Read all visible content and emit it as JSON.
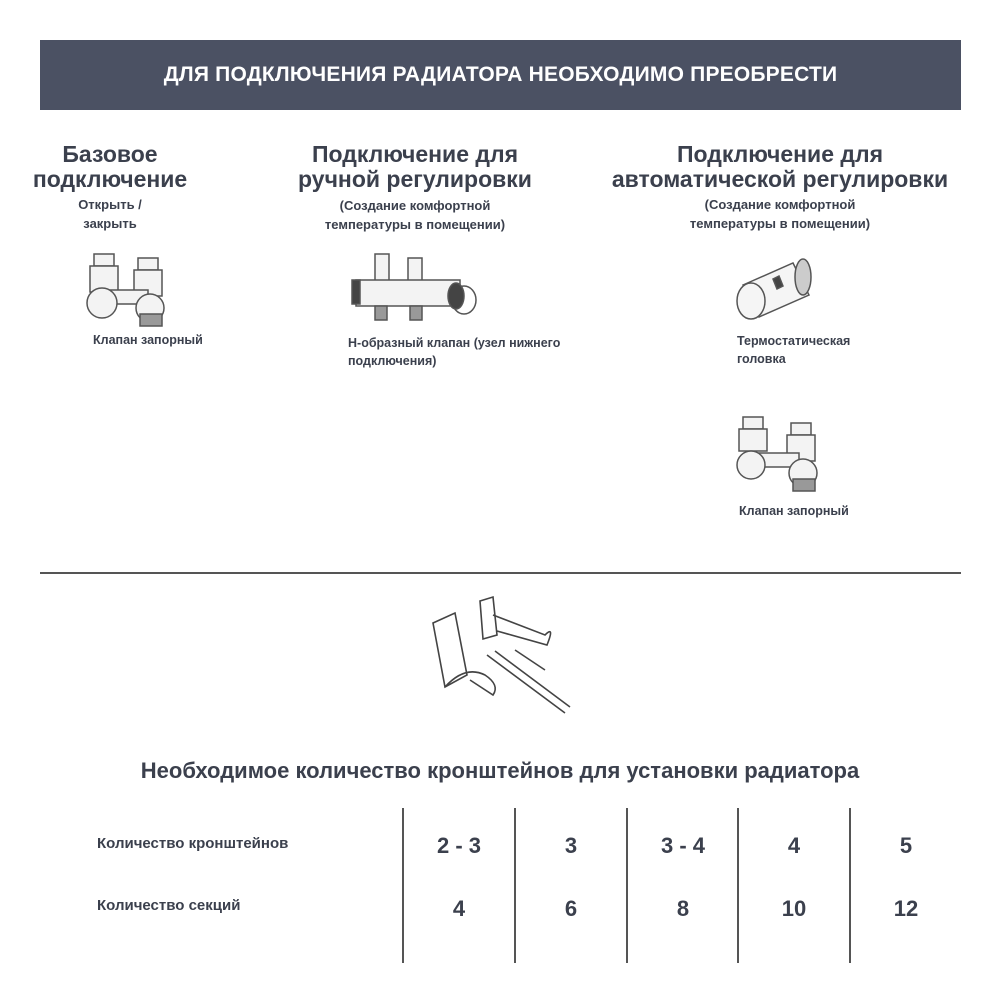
{
  "banner": {
    "title": "ДЛЯ ПОДКЛЮЧЕНИЯ РАДИАТОРА НЕОБХОДИМО ПРЕОБРЕСТИ"
  },
  "options": [
    {
      "title": "Базовое подключение",
      "subtitle": "Открыть / закрыть",
      "items": [
        {
          "caption": "Клапан запорный",
          "icon": "shutoff-valve-icon"
        }
      ]
    },
    {
      "title": "Подключение для ручной регулировки",
      "subtitle": "(Создание комфортной температуры в помещении)",
      "items": [
        {
          "caption": "Н-образный клапан (узел нижнего подключения)",
          "icon": "h-valve-icon"
        }
      ]
    },
    {
      "title": "Подключение для автоматической регулировки",
      "subtitle": "(Создание комфортной температуры в помещении)",
      "items": [
        {
          "caption": "Термостатическая головка",
          "icon": "thermostatic-head-icon"
        },
        {
          "caption": "Клапан запорный",
          "icon": "shutoff-valve-icon"
        }
      ]
    }
  ],
  "brackets": {
    "icon": "bracket-icon",
    "title": "Необходимое количество кронштейнов для установки радиатора",
    "rows": [
      {
        "label": "Количество кронштейнов",
        "values": [
          "2 - 3",
          "3",
          "3 - 4",
          "4",
          "5"
        ]
      },
      {
        "label": "Количество секций",
        "values": [
          "4",
          "6",
          "8",
          "10",
          "12"
        ]
      }
    ]
  },
  "colors": {
    "banner": "#4b5163",
    "text": "#3b404d"
  }
}
